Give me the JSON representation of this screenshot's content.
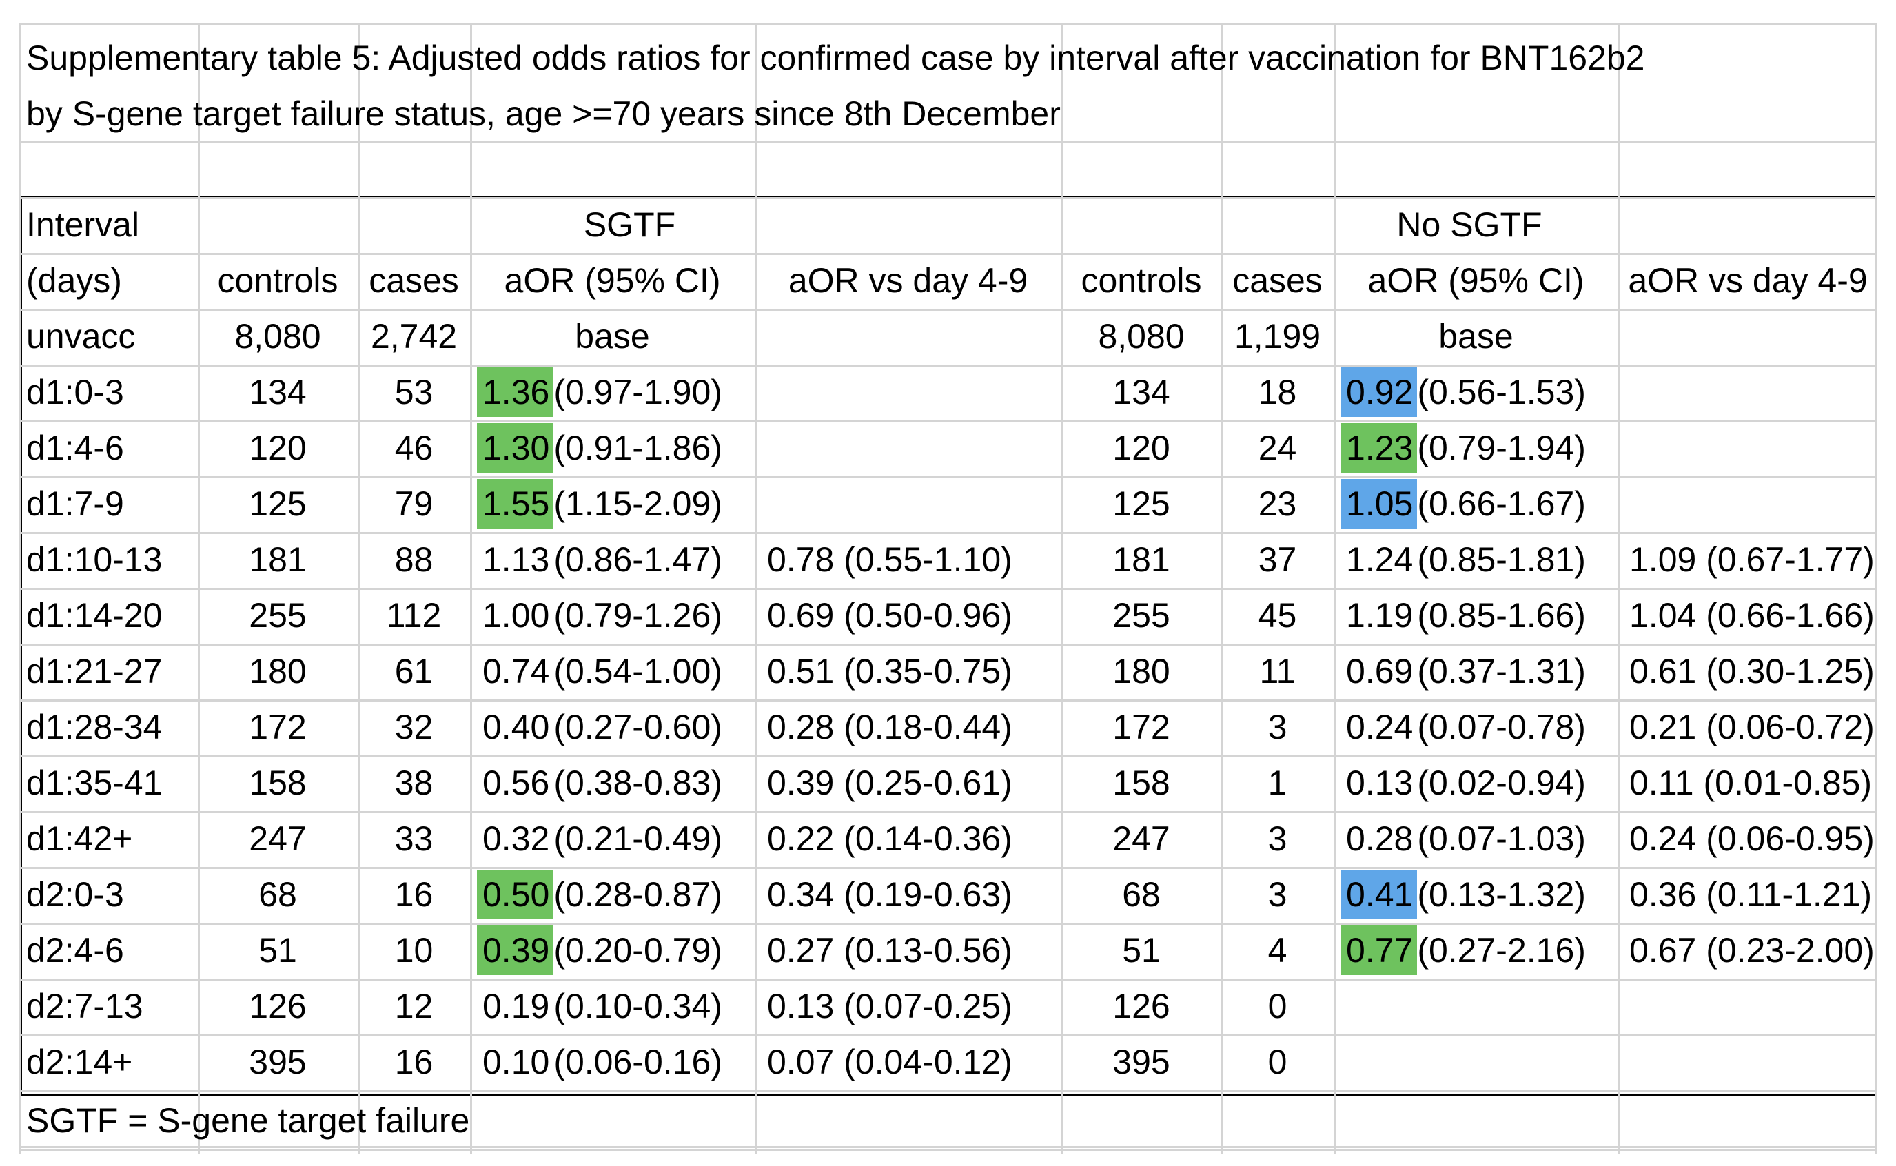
{
  "title_line1": "Supplementary table 5: Adjusted odds ratios for confirmed case by interval after vaccination for BNT162b2",
  "title_line2": "by S-gene target failure status, age >=70 years since 8th December",
  "header": {
    "interval_line1": "Interval",
    "interval_line2": "(days)",
    "group_sgtf": "SGTF",
    "group_nosgtf": "No SGTF",
    "col_controls": "controls",
    "col_cases": "cases",
    "col_aor": "aOR (95% CI)",
    "col_aor_vs": "aOR vs day 4-9"
  },
  "footnote": "SGTF = S-gene target failure",
  "highlight_colors": {
    "green": "#6ec25e",
    "blue": "#5fa6e8"
  },
  "rows": [
    {
      "interval": "unvacc",
      "s_controls": "8,080",
      "s_cases": "2,742",
      "s_aor": "base",
      "s_ci": "",
      "s_hl": "",
      "s_vs": "",
      "n_controls": "8,080",
      "n_cases": "1,199",
      "n_aor": "base",
      "n_ci": "",
      "n_hl": "",
      "n_vs": ""
    },
    {
      "interval": "d1:0-3",
      "s_controls": "134",
      "s_cases": "53",
      "s_aor": "1.36",
      "s_ci": "(0.97-1.90)",
      "s_hl": "green",
      "s_vs": "",
      "n_controls": "134",
      "n_cases": "18",
      "n_aor": "0.92",
      "n_ci": "(0.56-1.53)",
      "n_hl": "blue",
      "n_vs": ""
    },
    {
      "interval": "d1:4-6",
      "s_controls": "120",
      "s_cases": "46",
      "s_aor": "1.30",
      "s_ci": "(0.91-1.86)",
      "s_hl": "green",
      "s_vs": "",
      "n_controls": "120",
      "n_cases": "24",
      "n_aor": "1.23",
      "n_ci": "(0.79-1.94)",
      "n_hl": "green",
      "n_vs": ""
    },
    {
      "interval": "d1:7-9",
      "s_controls": "125",
      "s_cases": "79",
      "s_aor": "1.55",
      "s_ci": "(1.15-2.09)",
      "s_hl": "green",
      "s_vs": "",
      "n_controls": "125",
      "n_cases": "23",
      "n_aor": "1.05",
      "n_ci": "(0.66-1.67)",
      "n_hl": "blue",
      "n_vs": ""
    },
    {
      "interval": "d1:10-13",
      "s_controls": "181",
      "s_cases": "88",
      "s_aor": "1.13",
      "s_ci": "(0.86-1.47)",
      "s_hl": "",
      "s_vs": "0.78 (0.55-1.10)",
      "n_controls": "181",
      "n_cases": "37",
      "n_aor": "1.24",
      "n_ci": "(0.85-1.81)",
      "n_hl": "",
      "n_vs": "1.09 (0.67-1.77)"
    },
    {
      "interval": "d1:14-20",
      "s_controls": "255",
      "s_cases": "112",
      "s_aor": "1.00",
      "s_ci": "(0.79-1.26)",
      "s_hl": "",
      "s_vs": "0.69 (0.50-0.96)",
      "n_controls": "255",
      "n_cases": "45",
      "n_aor": "1.19",
      "n_ci": "(0.85-1.66)",
      "n_hl": "",
      "n_vs": "1.04 (0.66-1.66)"
    },
    {
      "interval": "d1:21-27",
      "s_controls": "180",
      "s_cases": "61",
      "s_aor": "0.74",
      "s_ci": "(0.54-1.00)",
      "s_hl": "",
      "s_vs": "0.51 (0.35-0.75)",
      "n_controls": "180",
      "n_cases": "11",
      "n_aor": "0.69",
      "n_ci": "(0.37-1.31)",
      "n_hl": "",
      "n_vs": "0.61 (0.30-1.25)"
    },
    {
      "interval": "d1:28-34",
      "s_controls": "172",
      "s_cases": "32",
      "s_aor": "0.40",
      "s_ci": "(0.27-0.60)",
      "s_hl": "",
      "s_vs": "0.28 (0.18-0.44)",
      "n_controls": "172",
      "n_cases": "3",
      "n_aor": "0.24",
      "n_ci": "(0.07-0.78)",
      "n_hl": "",
      "n_vs": "0.21 (0.06-0.72)"
    },
    {
      "interval": "d1:35-41",
      "s_controls": "158",
      "s_cases": "38",
      "s_aor": "0.56",
      "s_ci": "(0.38-0.83)",
      "s_hl": "",
      "s_vs": "0.39 (0.25-0.61)",
      "n_controls": "158",
      "n_cases": "1",
      "n_aor": "0.13",
      "n_ci": "(0.02-0.94)",
      "n_hl": "",
      "n_vs": "0.11 (0.01-0.85)"
    },
    {
      "interval": "d1:42+",
      "s_controls": "247",
      "s_cases": "33",
      "s_aor": "0.32",
      "s_ci": "(0.21-0.49)",
      "s_hl": "",
      "s_vs": "0.22 (0.14-0.36)",
      "n_controls": "247",
      "n_cases": "3",
      "n_aor": "0.28",
      "n_ci": "(0.07-1.03)",
      "n_hl": "",
      "n_vs": "0.24 (0.06-0.95)"
    },
    {
      "interval": "d2:0-3",
      "s_controls": "68",
      "s_cases": "16",
      "s_aor": "0.50",
      "s_ci": "(0.28-0.87)",
      "s_hl": "green",
      "s_vs": "0.34 (0.19-0.63)",
      "n_controls": "68",
      "n_cases": "3",
      "n_aor": "0.41",
      "n_ci": "(0.13-1.32)",
      "n_hl": "blue",
      "n_vs": "0.36 (0.11-1.21)"
    },
    {
      "interval": "d2:4-6",
      "s_controls": "51",
      "s_cases": "10",
      "s_aor": "0.39",
      "s_ci": "(0.20-0.79)",
      "s_hl": "green",
      "s_vs": "0.27 (0.13-0.56)",
      "n_controls": "51",
      "n_cases": "4",
      "n_aor": "0.77",
      "n_ci": "(0.27-2.16)",
      "n_hl": "green",
      "n_vs": "0.67 (0.23-2.00)"
    },
    {
      "interval": "d2:7-13",
      "s_controls": "126",
      "s_cases": "12",
      "s_aor": "0.19",
      "s_ci": "(0.10-0.34)",
      "s_hl": "",
      "s_vs": "0.13 (0.07-0.25)",
      "n_controls": "126",
      "n_cases": "0",
      "n_aor": "",
      "n_ci": "",
      "n_hl": "",
      "n_vs": ""
    },
    {
      "interval": "d2:14+",
      "s_controls": "395",
      "s_cases": "16",
      "s_aor": "0.10",
      "s_ci": "(0.06-0.16)",
      "s_hl": "",
      "s_vs": "0.07 (0.04-0.12)",
      "n_controls": "395",
      "n_cases": "0",
      "n_aor": "",
      "n_ci": "",
      "n_hl": "",
      "n_vs": ""
    }
  ]
}
